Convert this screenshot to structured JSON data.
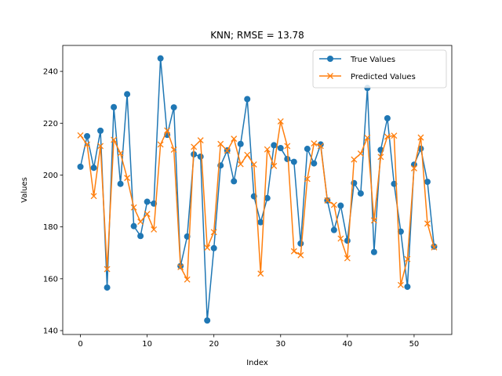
{
  "chart_data": {
    "type": "line",
    "title": "KNN; RMSE = 13.78",
    "xlabel": "Index",
    "ylabel": "Values",
    "xlim": [
      -2.65,
      55.65
    ],
    "ylim": [
      138.5,
      250
    ],
    "xticks": [
      0,
      10,
      20,
      30,
      40,
      50
    ],
    "yticks": [
      140,
      160,
      180,
      200,
      220,
      240
    ],
    "grid": false,
    "legend_position": "top-right",
    "x": [
      0,
      1,
      2,
      3,
      4,
      5,
      6,
      7,
      8,
      9,
      10,
      11,
      12,
      13,
      14,
      15,
      16,
      17,
      18,
      19,
      20,
      21,
      22,
      23,
      24,
      25,
      26,
      27,
      28,
      29,
      30,
      31,
      32,
      33,
      34,
      35,
      36,
      37,
      38,
      39,
      40,
      41,
      42,
      43,
      44,
      45,
      46,
      47,
      48,
      49,
      50,
      51,
      52,
      53
    ],
    "series": [
      {
        "name": "True Values",
        "color": "#1f77b4",
        "marker": "circle",
        "values": [
          203.2,
          215.0,
          202.8,
          217.1,
          156.6,
          226.2,
          196.6,
          231.2,
          180.3,
          176.5,
          189.7,
          189.0,
          245.0,
          215.5,
          226.1,
          164.9,
          176.3,
          208.0,
          207.1,
          143.9,
          171.8,
          203.7,
          209.5,
          197.6,
          212.0,
          229.3,
          191.8,
          181.8,
          191.1,
          211.5,
          210.4,
          206.2,
          205.1,
          173.6,
          210.1,
          204.5,
          211.8,
          190.2,
          178.8,
          188.2,
          174.7,
          196.9,
          192.9,
          233.6,
          170.3,
          209.7,
          221.9,
          196.6,
          178.2,
          156.9,
          204.0,
          210.2,
          197.4,
          172.4
        ]
      },
      {
        "name": "Predicted Values",
        "color": "#ff7f0e",
        "marker": "x",
        "values": [
          215.3,
          211.8,
          191.9,
          211.2,
          163.7,
          213.6,
          208.4,
          198.9,
          187.5,
          182.0,
          185.0,
          179.0,
          211.8,
          217.2,
          209.8,
          164.5,
          159.7,
          210.9,
          213.4,
          172.0,
          178.0,
          212.0,
          209.4,
          214.0,
          204.2,
          207.8,
          204.1,
          162.0,
          209.9,
          203.5,
          220.7,
          211.2,
          170.6,
          169.1,
          198.5,
          212.2,
          211.2,
          190.2,
          188.5,
          175.5,
          167.9,
          206.0,
          208.3,
          214.4,
          182.5,
          207.0,
          214.8,
          215.2,
          157.6,
          167.6,
          202.6,
          214.5,
          181.3,
          172.1
        ]
      }
    ]
  }
}
